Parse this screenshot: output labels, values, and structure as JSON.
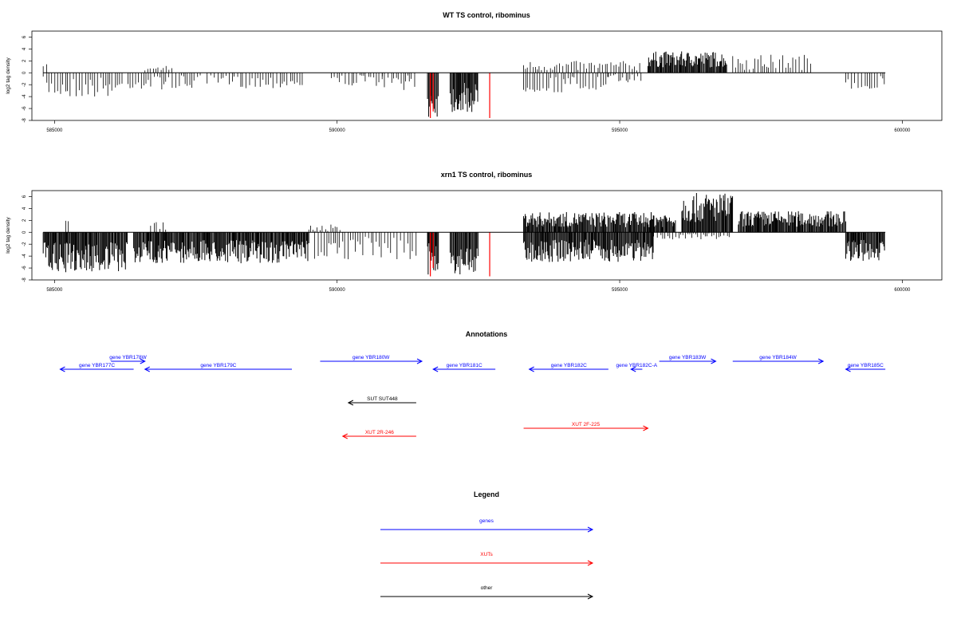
{
  "chart_data": [
    {
      "type": "bar",
      "title": "WT TS control, ribominus",
      "ylabel": "log2 tag density",
      "xlabel": "",
      "xlim": [
        584600,
        600700
      ],
      "ylim": [
        -8,
        7
      ],
      "xticks": [
        585000,
        590000,
        595000,
        600000
      ],
      "yticks": [
        -8,
        -6,
        -4,
        -2,
        0,
        2,
        4,
        6
      ],
      "grid": false,
      "baseline": 0,
      "highlight_color": "#ff0000",
      "bar_color": "#000000",
      "negative_segments": [
        {
          "from": 584800,
          "to": 586200,
          "min": -4.2
        },
        {
          "from": 586300,
          "to": 587600,
          "min": -2.8
        },
        {
          "from": 587700,
          "to": 589400,
          "min": -2.6
        },
        {
          "from": 589900,
          "to": 590800,
          "min": -2.2
        },
        {
          "from": 590800,
          "to": 591400,
          "min": -2.9
        },
        {
          "from": 591600,
          "to": 591800,
          "min": -7.6,
          "dense": true
        },
        {
          "from": 592000,
          "to": 592500,
          "min": -6.8,
          "dense": true
        },
        {
          "from": 593300,
          "to": 594800,
          "min": -3.4
        },
        {
          "from": 594800,
          "to": 595400,
          "min": -1.6
        },
        {
          "from": 599000,
          "to": 599700,
          "min": -3.0
        }
      ],
      "positive_segments": [
        {
          "from": 584800,
          "to": 584900,
          "max": 1.6
        },
        {
          "from": 586600,
          "to": 587100,
          "max": 1.2
        },
        {
          "from": 593300,
          "to": 595400,
          "max": 2.0
        },
        {
          "from": 595500,
          "to": 596900,
          "max": 3.6,
          "dense": true
        },
        {
          "from": 597000,
          "to": 598400,
          "max": 3.1
        }
      ],
      "red_bars": [
        {
          "x": 591650,
          "y": -7.6
        },
        {
          "x": 591700,
          "y": -6.5
        },
        {
          "x": 592700,
          "y": -7.6
        }
      ]
    },
    {
      "type": "bar",
      "title": "xrn1 TS control, ribominus",
      "ylabel": "log2 tag density",
      "xlabel": "",
      "xlim": [
        584600,
        600700
      ],
      "ylim": [
        -8,
        7
      ],
      "xticks": [
        585000,
        590000,
        595000,
        600000
      ],
      "yticks": [
        -8,
        -6,
        -4,
        -2,
        0,
        2,
        4,
        6
      ],
      "grid": false,
      "baseline": 0,
      "highlight_color": "#ff0000",
      "bar_color": "#000000",
      "negative_segments": [
        {
          "from": 584800,
          "to": 586300,
          "min": -6.8,
          "dense": true
        },
        {
          "from": 586400,
          "to": 589500,
          "min": -5.2,
          "dense": true
        },
        {
          "from": 589600,
          "to": 591400,
          "min": -4.6
        },
        {
          "from": 591600,
          "to": 591800,
          "min": -7.4,
          "dense": true
        },
        {
          "from": 592000,
          "to": 592500,
          "min": -7.5,
          "dense": true
        },
        {
          "from": 593300,
          "to": 595600,
          "min": -5.0,
          "dense": true
        },
        {
          "from": 595600,
          "to": 597000,
          "min": -1.2
        },
        {
          "from": 599000,
          "to": 599700,
          "min": -4.9,
          "dense": true
        }
      ],
      "positive_segments": [
        {
          "from": 585200,
          "to": 585300,
          "max": 2.0
        },
        {
          "from": 586700,
          "to": 587000,
          "max": 2.0
        },
        {
          "from": 589500,
          "to": 590100,
          "max": 1.3
        },
        {
          "from": 593300,
          "to": 596000,
          "max": 3.4,
          "dense": true
        },
        {
          "from": 596100,
          "to": 597000,
          "max": 6.6,
          "dense": true
        },
        {
          "from": 597100,
          "to": 599000,
          "max": 3.6,
          "dense": true
        }
      ],
      "red_bars": [
        {
          "x": 591650,
          "y": -7.4
        },
        {
          "x": 591700,
          "y": -6.0
        },
        {
          "x": 592700,
          "y": -7.4
        }
      ]
    }
  ],
  "annotations": {
    "title": "Annotations",
    "genes_color": "#0000ff",
    "xuts_color": "#ff0000",
    "other_color": "#000000",
    "genes": [
      {
        "label": "gene YBR177C",
        "from": 585100,
        "to": 586400,
        "strand": "-",
        "row": 0
      },
      {
        "label": "gene YBR178W",
        "from": 586000,
        "to": 586600,
        "strand": "+",
        "row": 1
      },
      {
        "label": "gene YBR179C",
        "from": 586600,
        "to": 589200,
        "strand": "-",
        "row": 0
      },
      {
        "label": "gene YBR180W",
        "from": 589700,
        "to": 591500,
        "strand": "+",
        "row": 1
      },
      {
        "label": "gene YBR181C",
        "from": 591700,
        "to": 592800,
        "strand": "-",
        "row": 0
      },
      {
        "label": "gene YBR182C",
        "from": 593400,
        "to": 594800,
        "strand": "-",
        "row": 0
      },
      {
        "label": "gene YBR182C-A",
        "from": 595200,
        "to": 595400,
        "strand": "-",
        "row": 0
      },
      {
        "label": "gene YBR183W",
        "from": 595700,
        "to": 596700,
        "strand": "+",
        "row": 1
      },
      {
        "label": "gene YBR184W",
        "from": 597000,
        "to": 598600,
        "strand": "+",
        "row": 1
      },
      {
        "label": "gene YBR185C",
        "from": 599000,
        "to": 599700,
        "strand": "-",
        "row": 0
      }
    ],
    "other": [
      {
        "label": "SUT SUT448",
        "from": 590200,
        "to": 591400,
        "strand": "-"
      }
    ],
    "xuts": [
      {
        "label": "XUT 2R-246",
        "from": 590100,
        "to": 591400,
        "strand": "-"
      },
      {
        "label": "XUT 2F-225",
        "from": 593300,
        "to": 595500,
        "strand": "+"
      }
    ]
  },
  "legend": {
    "title": "Legend",
    "items": [
      {
        "label": "genes",
        "color": "#0000ff"
      },
      {
        "label": "XUTs",
        "color": "#ff0000"
      },
      {
        "label": "other",
        "color": "#000000"
      }
    ]
  }
}
